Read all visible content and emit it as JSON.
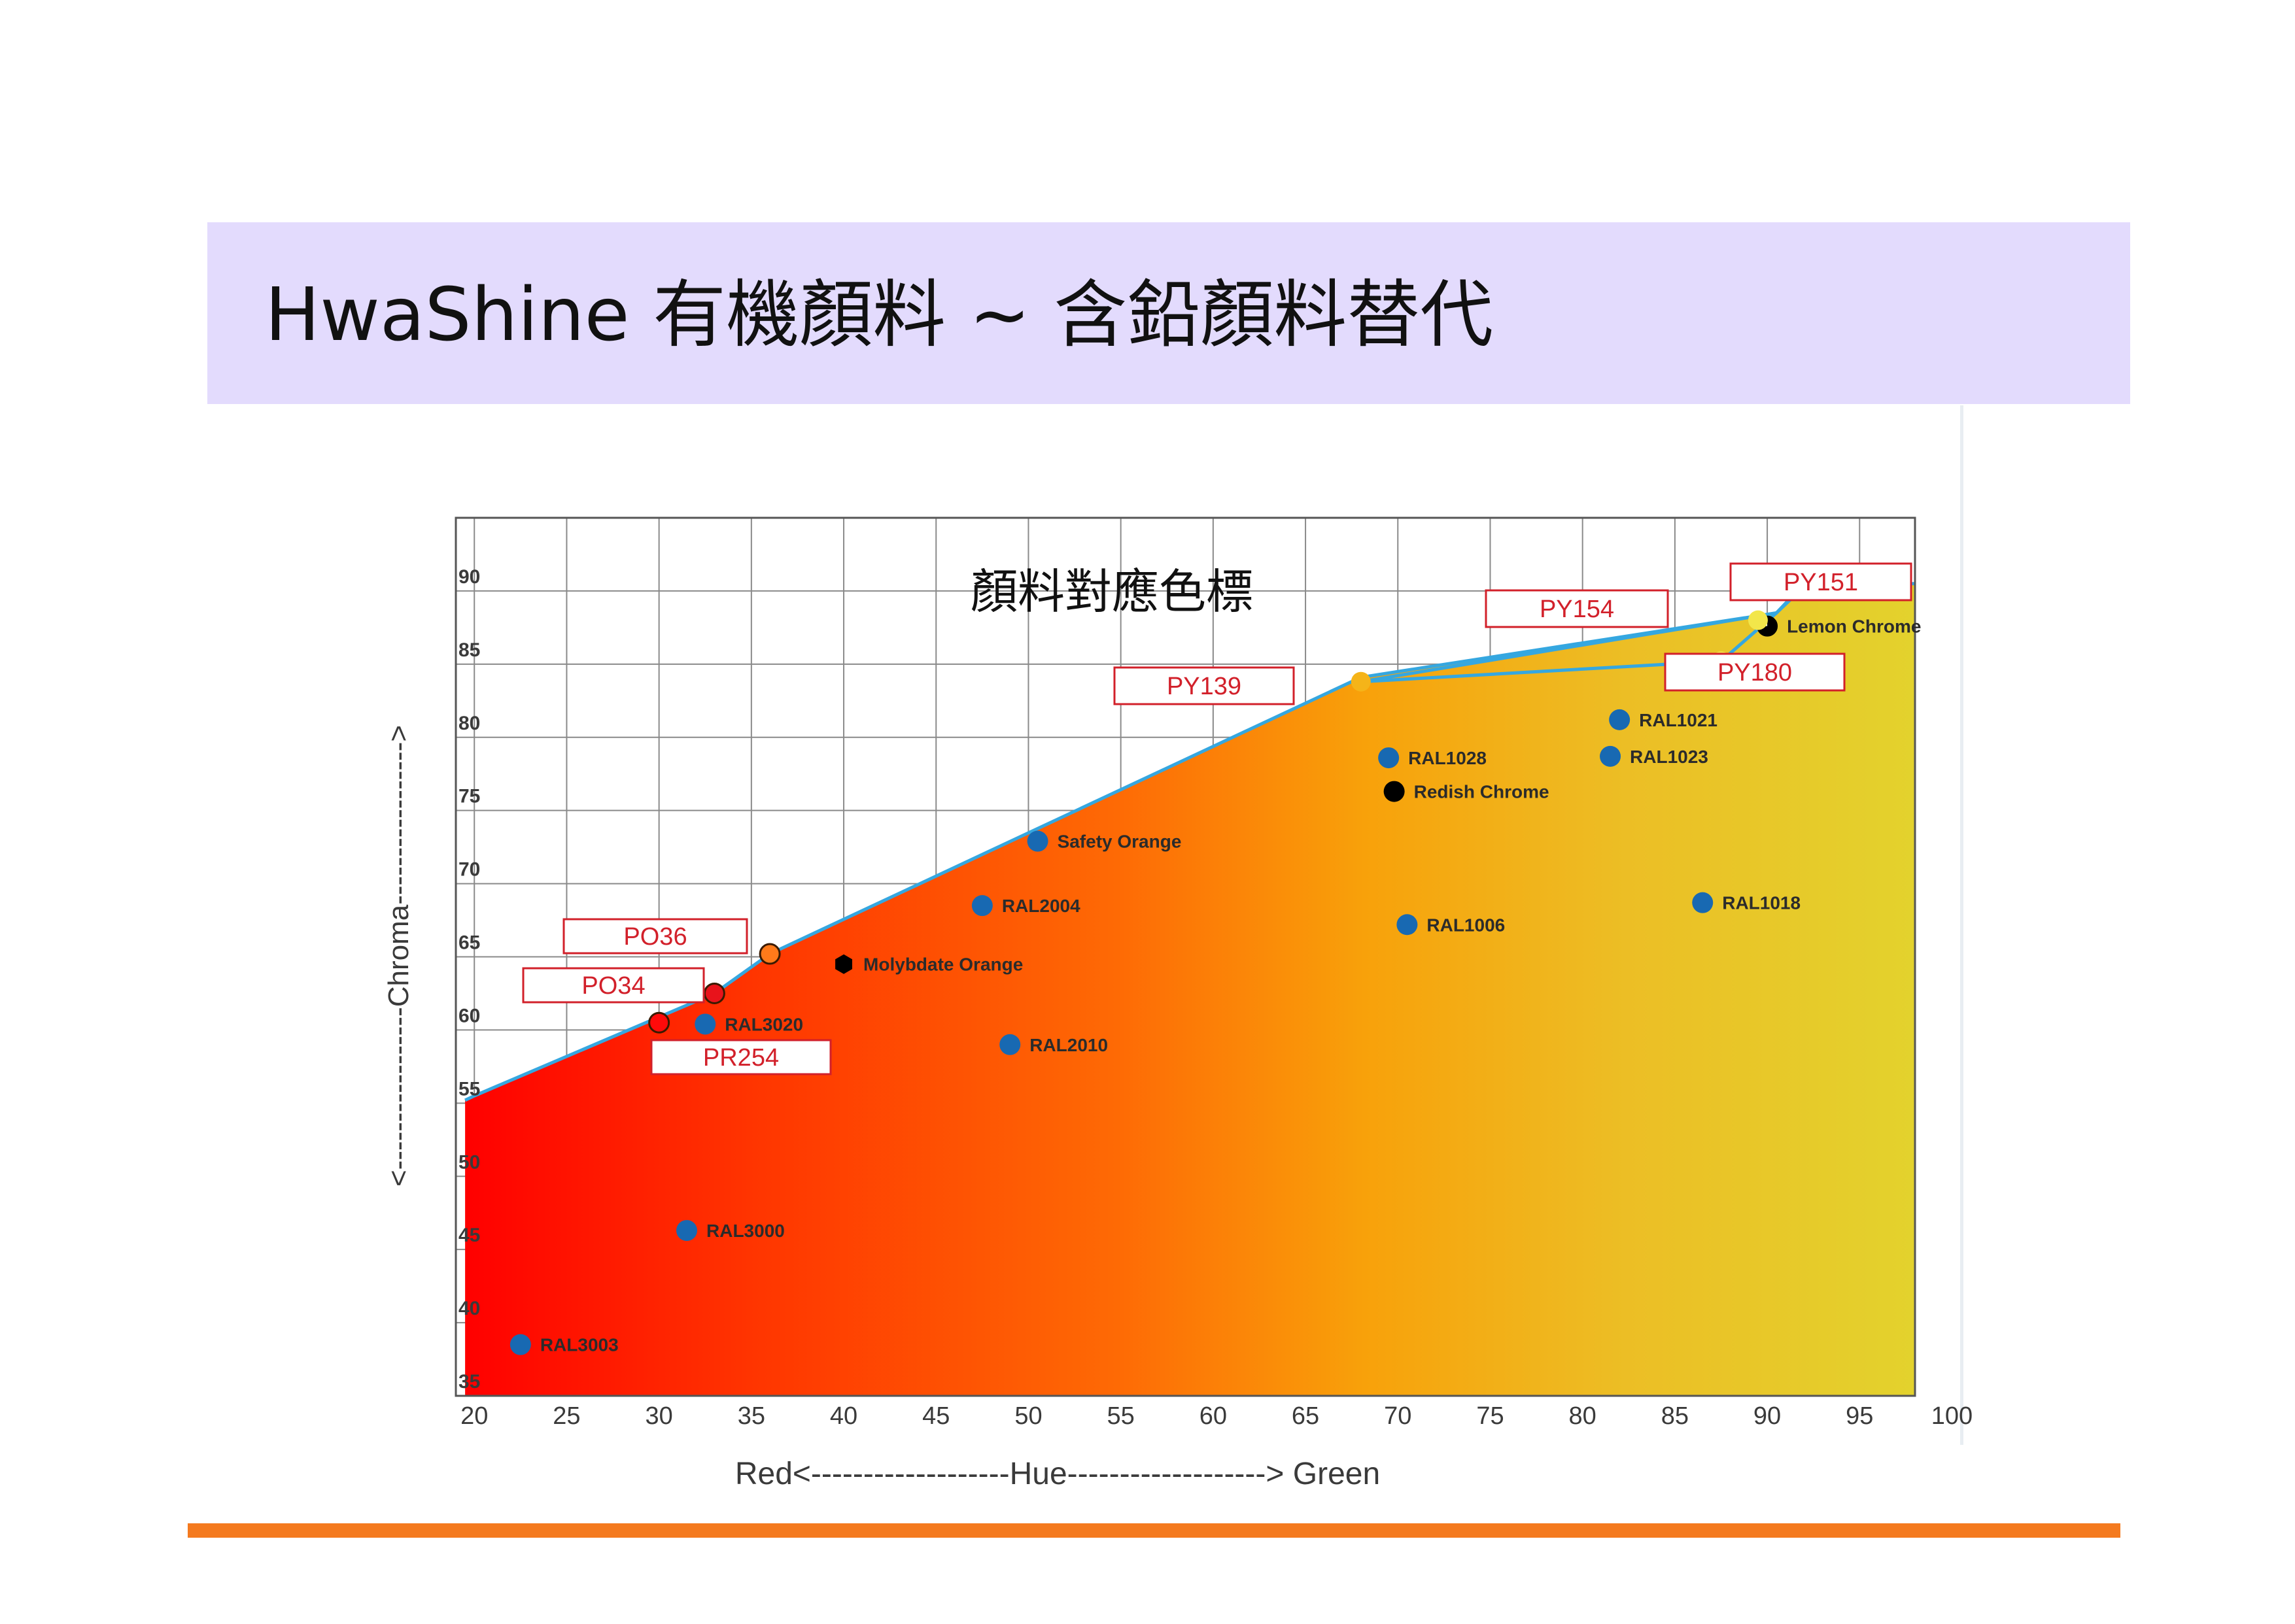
{
  "slide": {
    "title": "HwaShine 有機顏料 ~ 含鉛顏料替代",
    "colors": {
      "title_band": "#e3dbfd",
      "footer_rule": "#f47a1f",
      "frontier_line": "#35a7e0"
    }
  },
  "chart_data": {
    "type": "scatter",
    "title": "顏料對應色標",
    "xlabel": "Red<-------------------Hue-------------------> Green",
    "ylabel": "<-----------------Chroma----------------->",
    "xlim": [
      19,
      98
    ],
    "ylim": [
      35,
      95
    ],
    "x_ticks": [
      20,
      25,
      30,
      35,
      40,
      45,
      50,
      55,
      60,
      65,
      70,
      75,
      80,
      85,
      90,
      95,
      100
    ],
    "y_ticks": [
      35,
      40,
      45,
      50,
      55,
      60,
      65,
      70,
      75,
      80,
      85,
      90
    ],
    "grid": true,
    "gradient": [
      {
        "offset": 0,
        "color": "#ff0000"
      },
      {
        "offset": 0.2,
        "color": "#ff3500"
      },
      {
        "offset": 0.45,
        "color": "#fe6a05"
      },
      {
        "offset": 0.62,
        "color": "#f8a10a"
      },
      {
        "offset": 0.8,
        "color": "#ecbe25"
      },
      {
        "offset": 1,
        "color": "#e3d22d"
      }
    ],
    "frontier": [
      [
        19.5,
        55.2
      ],
      [
        20,
        55.5
      ],
      [
        33,
        62.5
      ],
      [
        36,
        65.2
      ],
      [
        68,
        84.1
      ],
      [
        90.5,
        88.5
      ],
      [
        92,
        90.5
      ],
      [
        98,
        90.5
      ]
    ],
    "pigment_links": [
      [
        [
          68,
          83.8
        ],
        [
          90.5,
          88.5
        ]
      ],
      [
        [
          68,
          83.8
        ],
        [
          87.5,
          85.2
        ]
      ],
      [
        [
          87.5,
          85.2
        ],
        [
          90.5,
          88.5
        ]
      ],
      [
        [
          90.5,
          88.5
        ],
        [
          92,
          90.3
        ]
      ]
    ],
    "reference_points": [
      {
        "label": "RAL3003",
        "x": 22.5,
        "y": 38.5,
        "color": "#1869b2"
      },
      {
        "label": "RAL3000",
        "x": 31.5,
        "y": 46.3,
        "color": "#1869b2"
      },
      {
        "label": "RAL3020",
        "x": 32.5,
        "y": 60.4,
        "color": "#1869b2"
      },
      {
        "label": "RAL2004",
        "x": 47.5,
        "y": 68.5,
        "color": "#1869b2"
      },
      {
        "label": "RAL2010",
        "x": 49,
        "y": 59.0,
        "color": "#1869b2"
      },
      {
        "label": "Safety Orange",
        "x": 50.5,
        "y": 72.9,
        "color": "#1869b2"
      },
      {
        "label": "RAL1028",
        "x": 69.5,
        "y": 78.6,
        "color": "#1869b2"
      },
      {
        "label": "RAL1006",
        "x": 70.5,
        "y": 67.2,
        "color": "#1869b2"
      },
      {
        "label": "RAL1021",
        "x": 82,
        "y": 81.2,
        "color": "#1869b2"
      },
      {
        "label": "RAL1023",
        "x": 81.5,
        "y": 78.7,
        "color": "#1869b2"
      },
      {
        "label": "RAL1018",
        "x": 86.5,
        "y": 68.7,
        "color": "#1869b2"
      },
      {
        "label": "Molybdate Orange",
        "x": 40,
        "y": 64.5,
        "color": "#000000",
        "shape": "hexagon"
      },
      {
        "label": "Redish Chrome",
        "x": 69.8,
        "y": 76.3,
        "color": "#000000"
      },
      {
        "label": "Lemon Chrome",
        "x": 90,
        "y": 87.6,
        "color": "#000000",
        "shape": "half"
      }
    ],
    "pigment_points": [
      {
        "label": "PO36",
        "x": 36,
        "y": 65.2,
        "color": "#ff7a1a"
      },
      {
        "label": "PO34",
        "x": 33,
        "y": 62.5,
        "color": "#e8131b"
      },
      {
        "label": "PR254",
        "x": 30,
        "y": 60.5,
        "color": "#ff0a0a"
      },
      {
        "label": "PY139",
        "x": 68,
        "y": 83.8,
        "color": "#f5b419"
      },
      {
        "label": "PY180",
        "x": 87.5,
        "y": 85.2,
        "color": "#f2e64a"
      },
      {
        "label": "PY154",
        "x": 89.5,
        "y": 88.0,
        "color": "#f2e64a"
      },
      {
        "label": "PY151",
        "x": 92,
        "y": 90.3,
        "color": "#f2e64a"
      }
    ]
  }
}
